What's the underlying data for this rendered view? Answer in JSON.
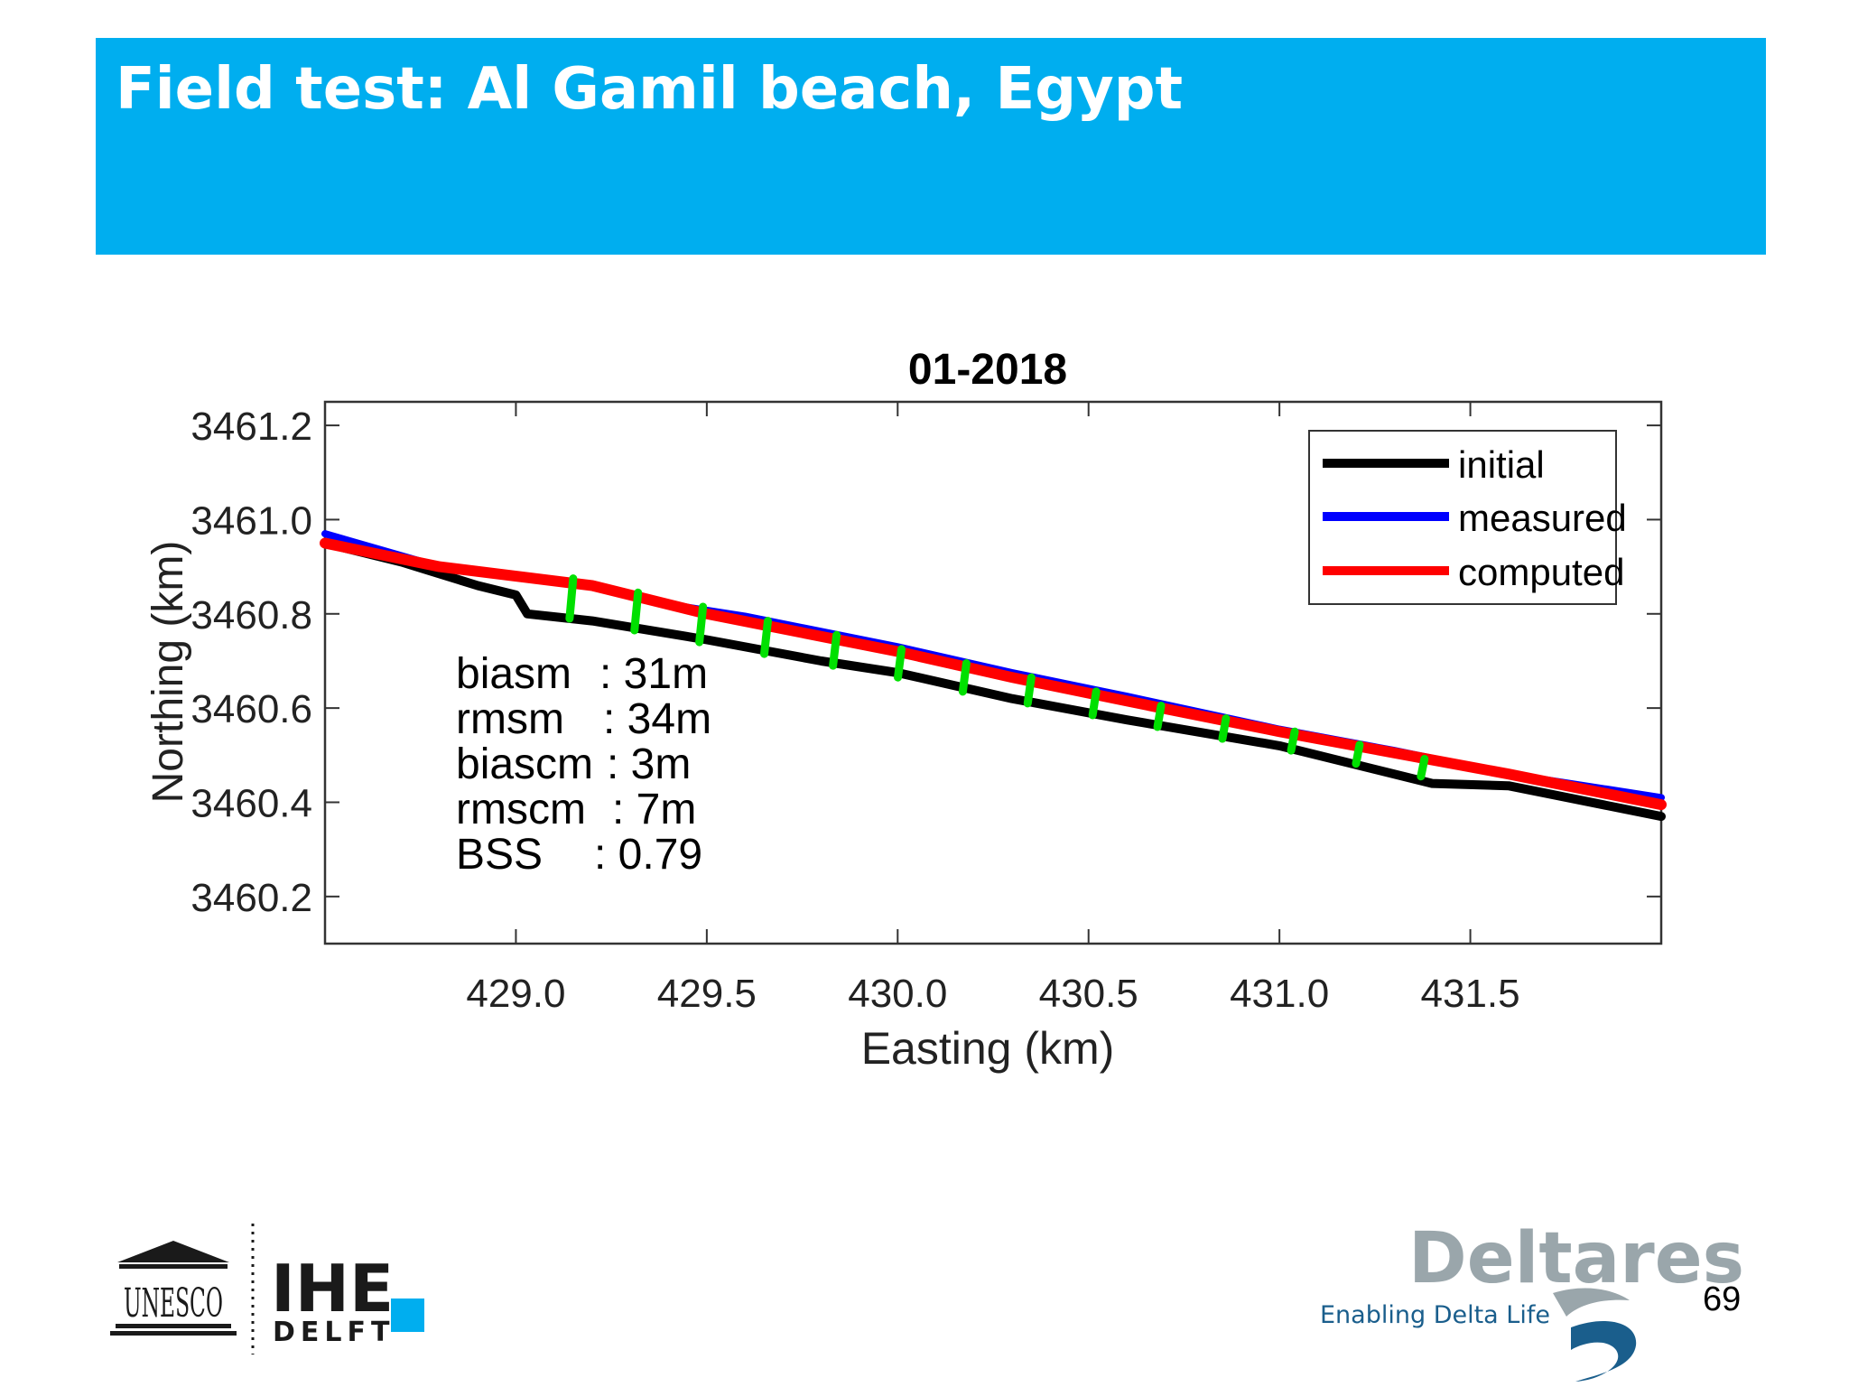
{
  "slide": {
    "title": "Field test: Al Gamil beach, Egypt",
    "page_number": "69",
    "accent_color": "#00aeef"
  },
  "logos": {
    "unesco": "UNESCO",
    "ihe": "IHE",
    "delft": "DELFT",
    "deltares": "Deltares",
    "deltares_tagline": "Enabling Delta Life"
  },
  "chart_data": {
    "type": "line",
    "title": "01-2018",
    "xlabel": "Easting (km)",
    "ylabel": "Northing (km)",
    "xlim": [
      428.5,
      432.0
    ],
    "ylim": [
      3460.1,
      3461.25
    ],
    "xticks": [
      429.0,
      429.5,
      430.0,
      430.5,
      431.0,
      431.5
    ],
    "xtick_labels": [
      "429.0",
      "429.5",
      "430.0",
      "430.5",
      "431.0",
      "431.5"
    ],
    "yticks": [
      3460.2,
      3460.4,
      3460.6,
      3460.8,
      3461.0,
      3461.2
    ],
    "ytick_labels": [
      "3460.2",
      "3460.4",
      "3460.6",
      "3460.8",
      "3461.0",
      "3461.2"
    ],
    "grid": false,
    "legend_position": "top-right",
    "series": [
      {
        "name": "initial",
        "color": "#000000",
        "x": [
          428.5,
          428.7,
          428.9,
          429.0,
          429.03,
          429.2,
          429.5,
          429.8,
          430.0,
          430.3,
          430.6,
          431.0,
          431.4,
          431.6,
          432.0
        ],
        "y": [
          3460.95,
          3460.91,
          3460.86,
          3460.84,
          3460.8,
          3460.785,
          3460.745,
          3460.7,
          3460.675,
          3460.62,
          3460.575,
          3460.52,
          3460.44,
          3460.435,
          3460.37
        ]
      },
      {
        "name": "measured",
        "color": "#0000ff",
        "x": [
          428.5,
          428.8,
          429.2,
          429.4,
          429.6,
          430.0,
          430.3,
          430.6,
          431.0,
          431.3,
          431.6,
          432.0
        ],
        "y": [
          3460.97,
          3460.9,
          3460.86,
          3460.82,
          3460.795,
          3460.73,
          3460.675,
          3460.625,
          3460.555,
          3460.51,
          3460.46,
          3460.41
        ]
      },
      {
        "name": "computed",
        "color": "#ff0000",
        "x": [
          428.5,
          428.8,
          429.2,
          429.5,
          430.0,
          430.3,
          430.6,
          431.0,
          431.3,
          431.6,
          432.0
        ],
        "y": [
          3460.95,
          3460.9,
          3460.86,
          3460.8,
          3460.72,
          3460.665,
          3460.615,
          3460.55,
          3460.505,
          3460.46,
          3460.395
        ]
      }
    ],
    "transects": {
      "color": "#00e000",
      "x": [
        429.15,
        429.32,
        429.49,
        429.66,
        429.84,
        430.01,
        430.18,
        430.35,
        430.52,
        430.69,
        430.86,
        431.04,
        431.21,
        431.38
      ],
      "y_top": [
        3460.875,
        3460.845,
        3460.815,
        3460.785,
        3460.755,
        3460.725,
        3460.695,
        3460.665,
        3460.635,
        3460.605,
        3460.578,
        3460.55,
        3460.522,
        3460.492
      ],
      "y_bottom": [
        3460.79,
        3460.765,
        3460.74,
        3460.715,
        3460.69,
        3460.665,
        3460.635,
        3460.61,
        3460.585,
        3460.56,
        3460.535,
        3460.51,
        3460.482,
        3460.455
      ]
    },
    "stats": [
      {
        "label": "biasm",
        "value": ": 31m"
      },
      {
        "label": "rmsm",
        "value": ": 34m"
      },
      {
        "label": "biascm",
        "value": ": 3m"
      },
      {
        "label": "rmscm",
        "value": ": 7m"
      },
      {
        "label": "BSS",
        "value": ": 0.79"
      }
    ]
  }
}
